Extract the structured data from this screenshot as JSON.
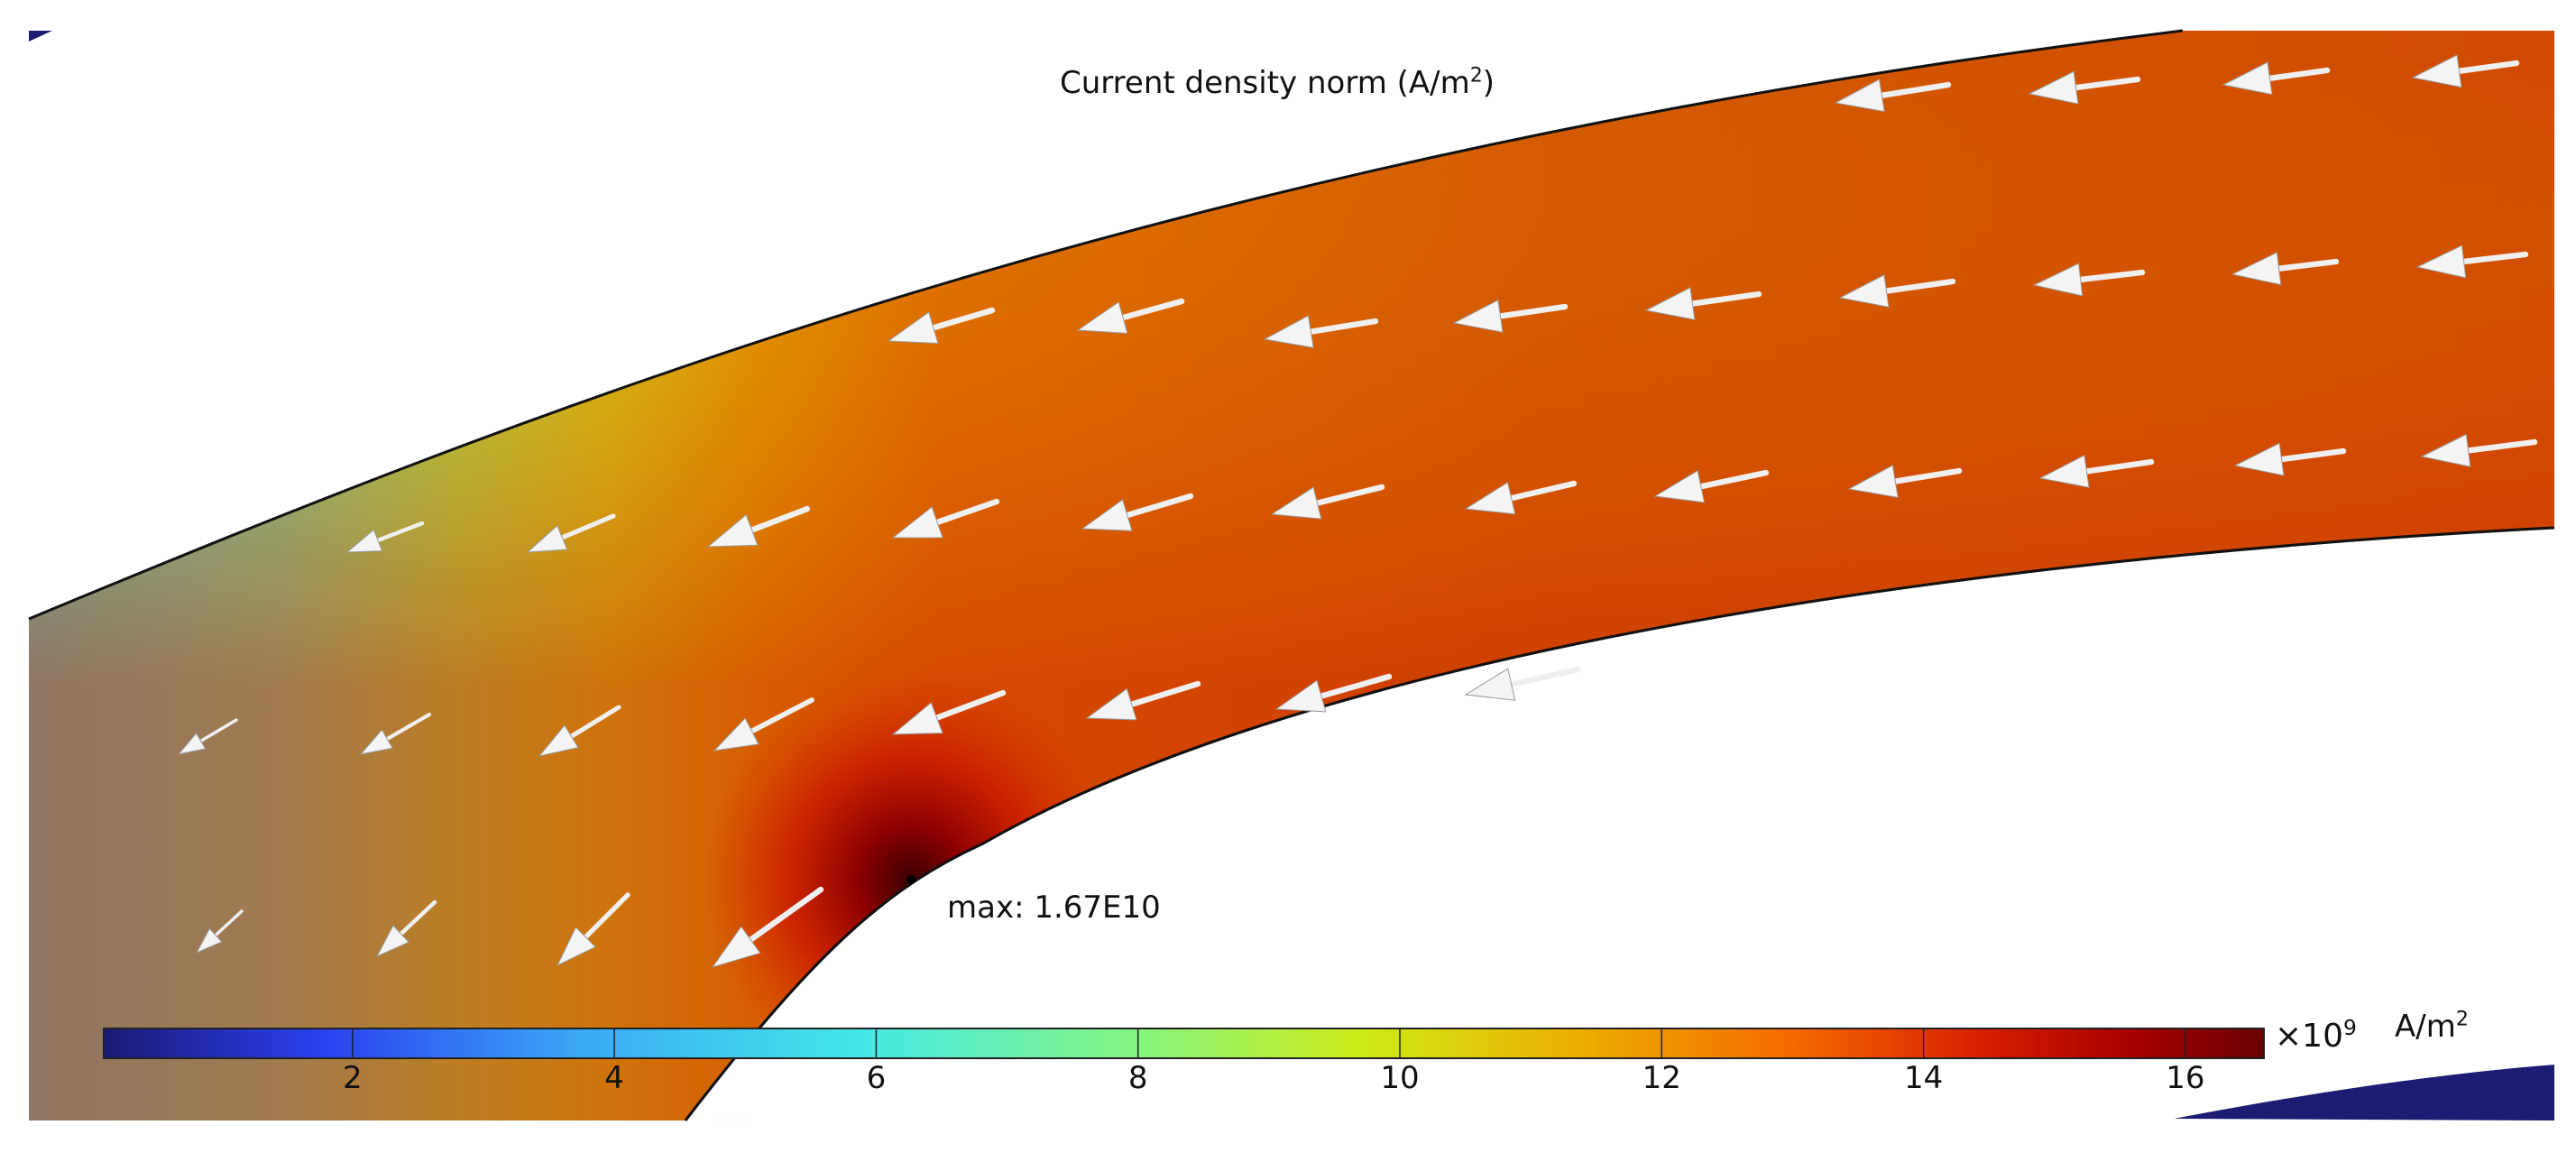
{
  "chart_data": {
    "type": "heatmap",
    "title": "Current density norm (A/m",
    "title_sup": "2",
    "title_suffix": ")",
    "annotation": "max: 1.67E10",
    "colorbar": {
      "tick_labels": [
        "2",
        "4",
        "6",
        "8",
        "10",
        "12",
        "14",
        "16"
      ],
      "tick_values": [
        2,
        4,
        6,
        8,
        10,
        12,
        14,
        16
      ],
      "range": [
        0.1,
        16.6
      ],
      "multiplier_base": "×10",
      "multiplier_exp": "9",
      "unit": "A/m",
      "unit_sup": "2",
      "colormap": [
        "#1a1a74",
        "#2b3ff0",
        "#3aa8f5",
        "#44e8e8",
        "#86f57f",
        "#cdec1c",
        "#ecb000",
        "#f46b00",
        "#d81d00",
        "#a60000",
        "#6a0000"
      ]
    },
    "field_colors": {
      "left_edge": "#46d6dc",
      "mid": "#d4d21a",
      "right_arm": "#d45000",
      "hotspot": "#3c0000"
    }
  }
}
